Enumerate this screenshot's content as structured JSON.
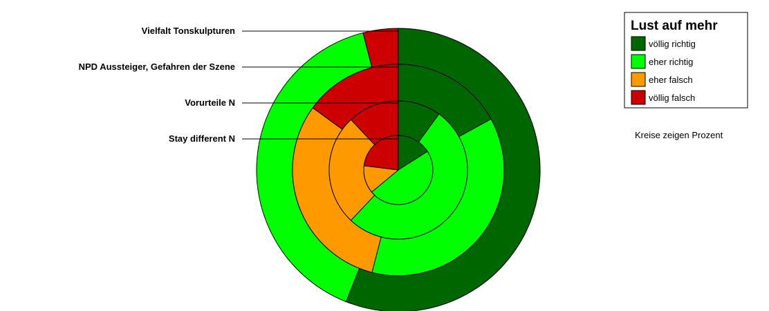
{
  "chart_data": {
    "type": "doughnut",
    "rings": [
      {
        "label": "Vielfalt Tonskulpturen",
        "values": [
          56,
          40,
          0,
          4
        ]
      },
      {
        "label": "NPD Aussteiger, Gefahren der Szene",
        "values": [
          17,
          37,
          31,
          15
        ]
      },
      {
        "label": "Vorurteile N",
        "values": [
          10,
          52,
          26,
          12
        ]
      },
      {
        "label": "Stay different N",
        "values": [
          16,
          48,
          13,
          23
        ]
      }
    ],
    "legend": {
      "title": "Lust auf mehr",
      "placement": "top-right",
      "entries": [
        {
          "label": "völlig richtig",
          "color": "#006600"
        },
        {
          "label": "eher richtig",
          "color": "#00ff00"
        },
        {
          "label": "eher falsch",
          "color": "#ff9900"
        },
        {
          "label": "völlig falsch",
          "color": "#cc0000"
        }
      ]
    },
    "note": "Kreise zeigen Prozent"
  }
}
